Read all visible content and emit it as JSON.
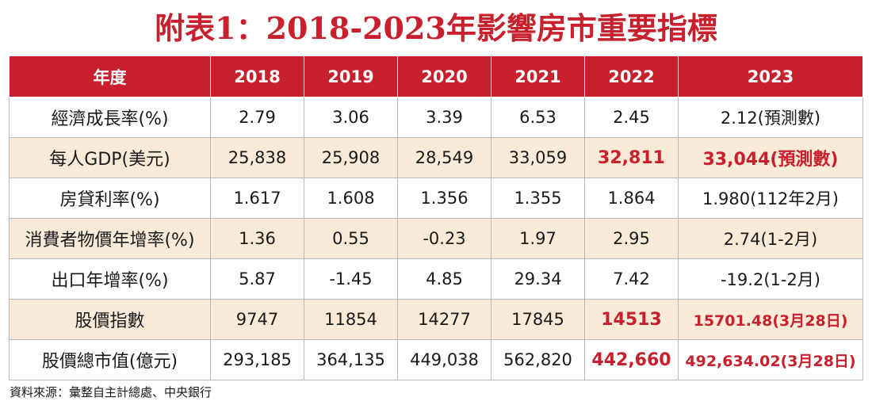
{
  "title": "附表1：2018-2023年影響房市重要指標",
  "table": {
    "header": [
      "年度",
      "2018",
      "2019",
      "2020",
      "2021",
      "2022",
      "2023"
    ],
    "rows": [
      {
        "label": "經濟成長率(%)",
        "values": [
          "2.79",
          "3.06",
          "3.39",
          "6.53",
          "2.45",
          "2.12(預測數)"
        ]
      },
      {
        "label": "每人GDP(美元)",
        "values": [
          "25,838",
          "25,908",
          "28,549",
          "33,059",
          "32,811",
          "33,044(預測數)"
        ]
      },
      {
        "label": "房貸利率(%)",
        "values": [
          "1.617",
          "1.608",
          "1.356",
          "1.355",
          "1.864",
          "1.980(112年2月)"
        ]
      },
      {
        "label": "消費者物價年增率(%)",
        "values": [
          "1.36",
          "0.55",
          "-0.23",
          "1.97",
          "2.95",
          "2.74(1-2月)"
        ]
      },
      {
        "label": "出口年增率(%)",
        "values": [
          "5.87",
          "-1.45",
          "4.85",
          "29.34",
          "7.42",
          "-19.2(1-2月)"
        ]
      },
      {
        "label": "股價指數",
        "values": [
          "9747",
          "11854",
          "14277",
          "17845",
          "14513",
          "15701.48(3月28日)"
        ]
      },
      {
        "label": "股價總市值(億元)",
        "values": [
          "293,185",
          "364,135",
          "449,038",
          "562,820",
          "442,660",
          "492,634.02(3月28日)"
        ]
      }
    ]
  },
  "source": "資料來源：彙整自主計總處、中央銀行",
  "colors": {
    "accent_red": "#c8202d",
    "shaded_row": "#f9ebd8",
    "border": "#b9b9b9"
  }
}
